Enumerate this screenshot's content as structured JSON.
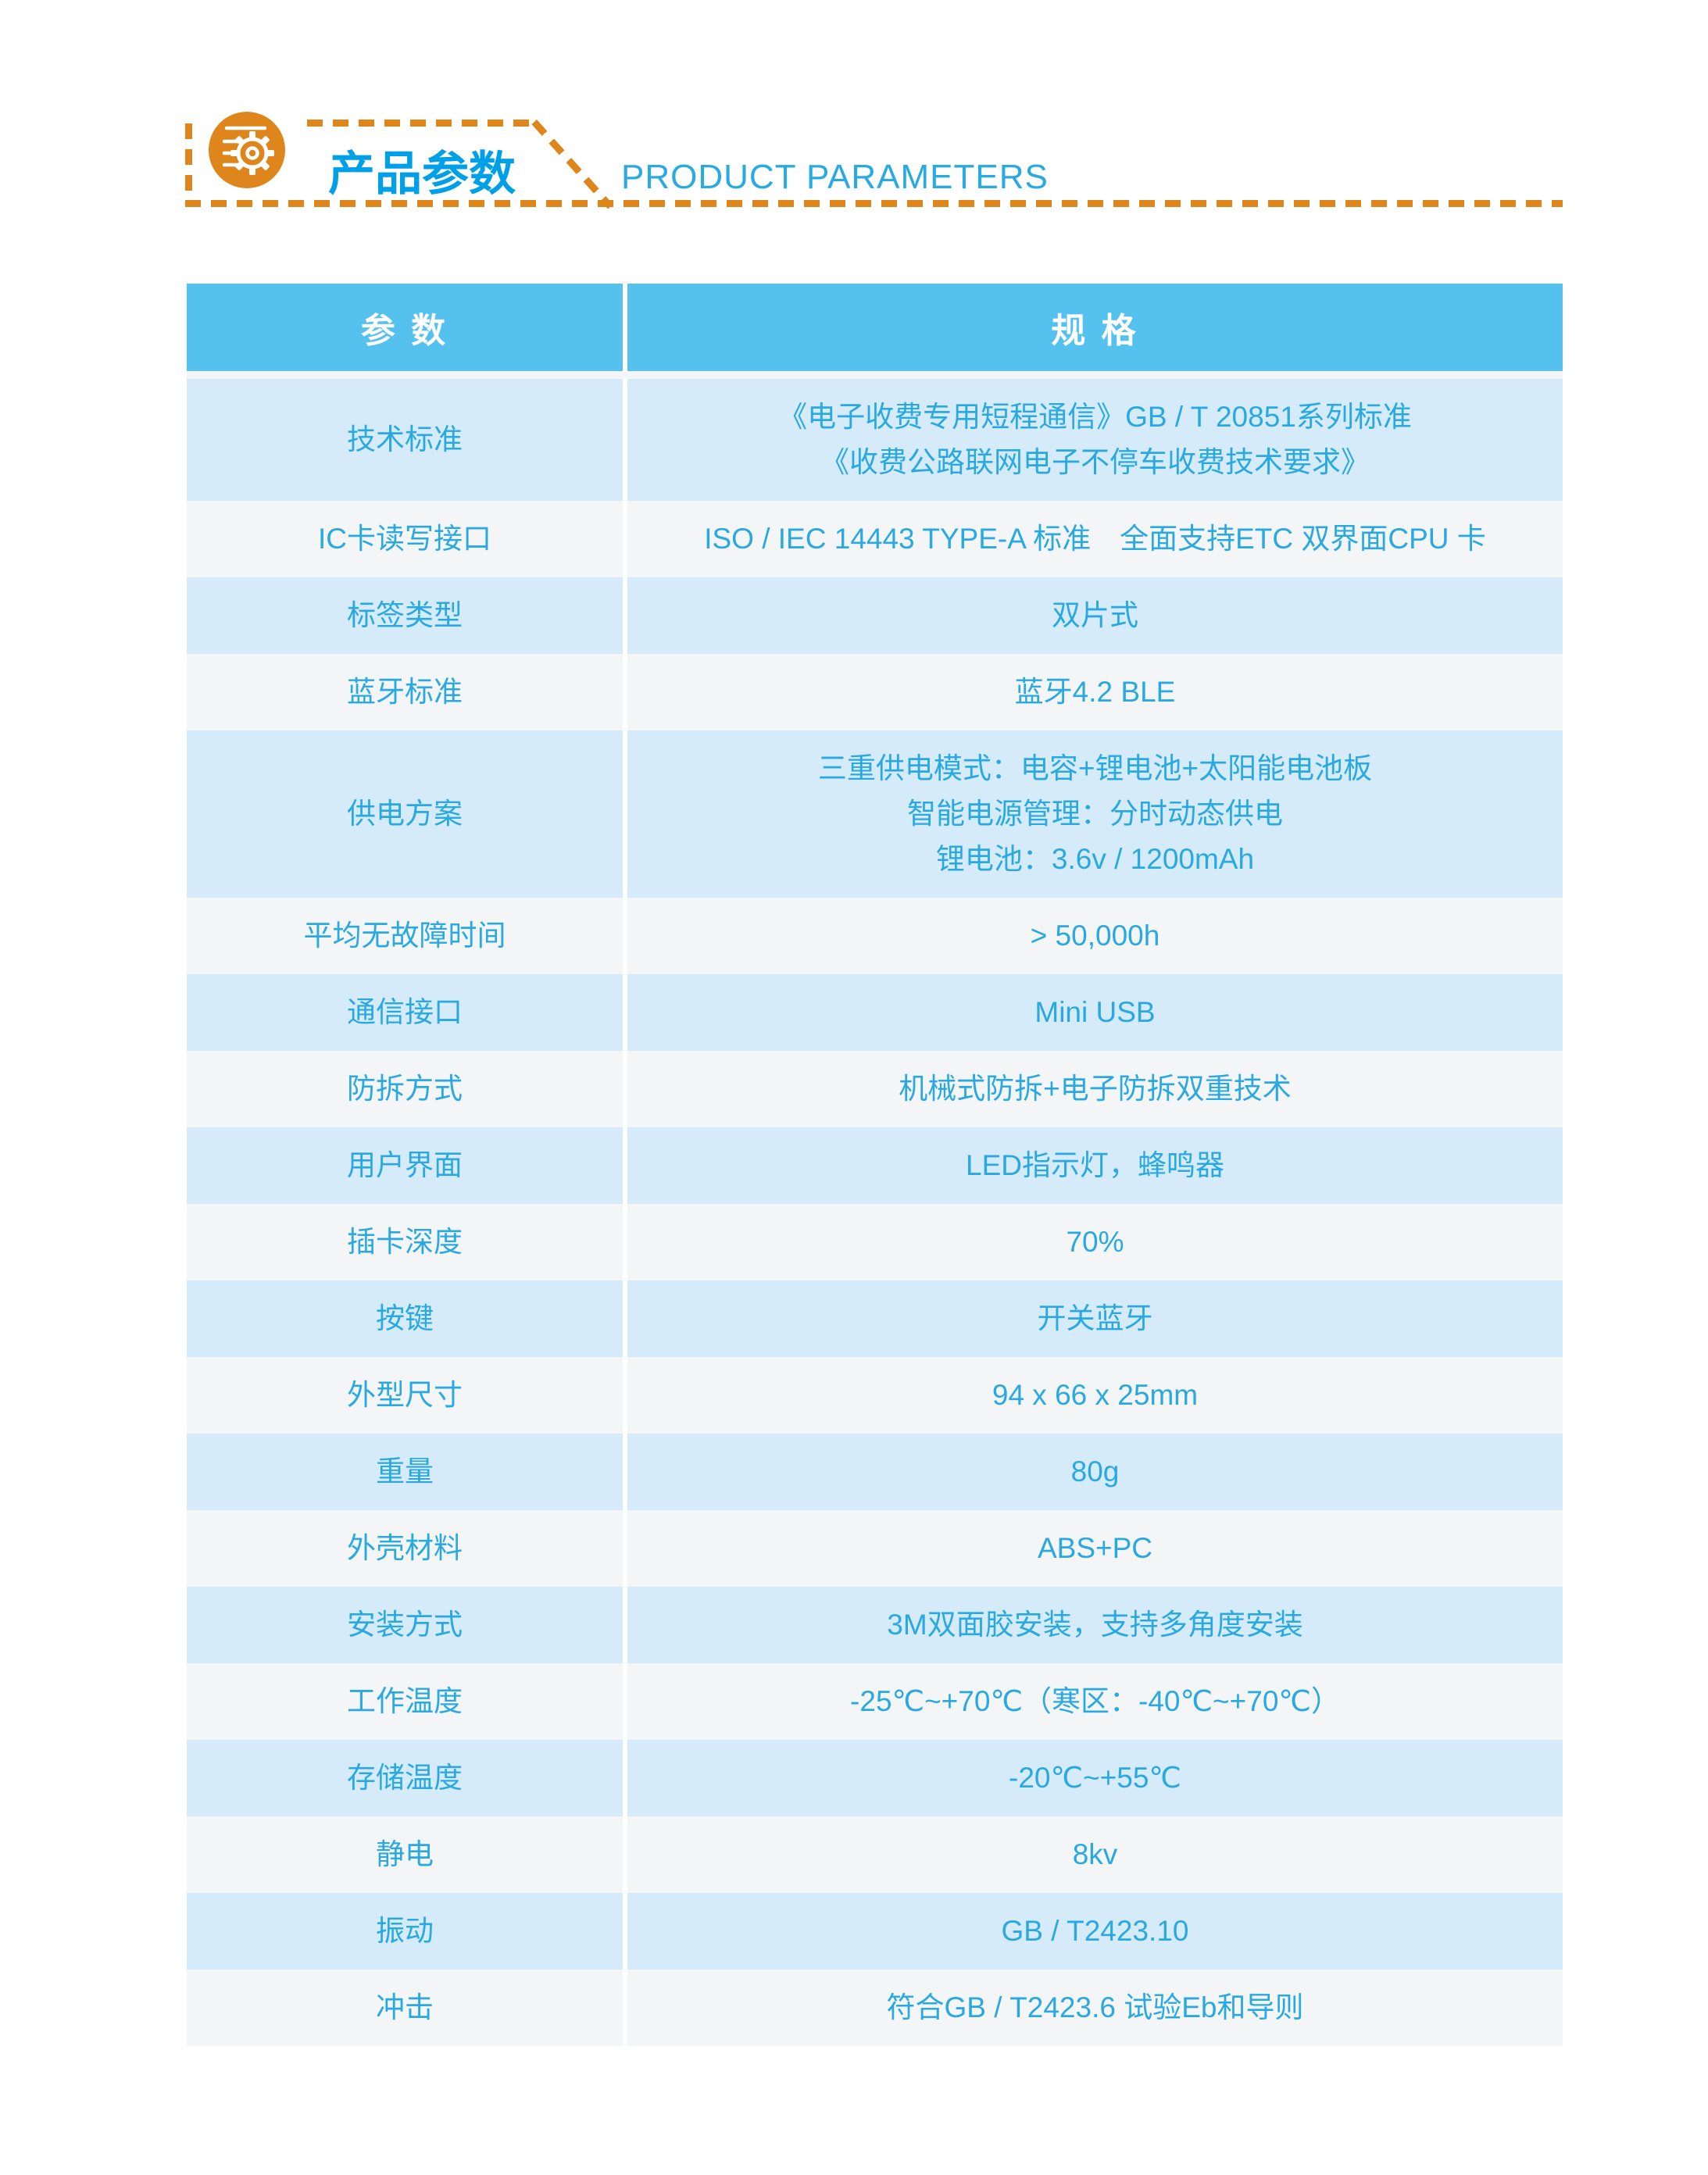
{
  "header": {
    "title": "产品参数",
    "subtitle": "PRODUCT PARAMETERS",
    "icon": "gear-list-icon"
  },
  "colors": {
    "accent_orange": "#DE861C",
    "title_blue": "#00A0E9",
    "subtitle_blue": "#29ABE2",
    "table_header_bg": "#54C1EF",
    "table_header_text": "#FFFFFF",
    "row_blue_bg": "#D5EBF9",
    "row_light_bg": "#F4F5F7",
    "cell_text": "#29A9E0"
  },
  "table": {
    "columns": [
      "参 数",
      "规 格"
    ],
    "rows": [
      {
        "param": "技术标准",
        "spec": [
          "《电子收费专用短程通信》GB / T 20851系列标准",
          "《收费公路联网电子不停车收费技术要求》"
        ]
      },
      {
        "param": "IC卡读写接口",
        "spec": [
          "ISO / IEC 14443 TYPE-A 标准　全面支持ETC 双界面CPU 卡"
        ]
      },
      {
        "param": "标签类型",
        "spec": [
          "双片式"
        ]
      },
      {
        "param": "蓝牙标准",
        "spec": [
          "蓝牙4.2 BLE"
        ]
      },
      {
        "param": "供电方案",
        "spec": [
          "三重供电模式：电容+锂电池+太阳能电池板",
          "智能电源管理：分时动态供电",
          "锂电池：3.6v / 1200mAh"
        ]
      },
      {
        "param": "平均无故障时间",
        "spec": [
          "> 50,000h"
        ]
      },
      {
        "param": "通信接口",
        "spec": [
          "Mini USB"
        ]
      },
      {
        "param": "防拆方式",
        "spec": [
          "机械式防拆+电子防拆双重技术"
        ]
      },
      {
        "param": "用户界面",
        "spec": [
          "LED指示灯，蜂鸣器"
        ]
      },
      {
        "param": "插卡深度",
        "spec": [
          "70%"
        ]
      },
      {
        "param": "按键",
        "spec": [
          "开关蓝牙"
        ]
      },
      {
        "param": "外型尺寸",
        "spec": [
          "94 x 66 x 25mm"
        ]
      },
      {
        "param": "重量",
        "spec": [
          "80g"
        ]
      },
      {
        "param": "外壳材料",
        "spec": [
          "ABS+PC"
        ]
      },
      {
        "param": "安装方式",
        "spec": [
          "3M双面胶安装，支持多角度安装"
        ]
      },
      {
        "param": "工作温度",
        "spec": [
          "-25℃~+70℃（寒区：-40℃~+70℃）"
        ]
      },
      {
        "param": "存储温度",
        "spec": [
          "-20℃~+55℃"
        ]
      },
      {
        "param": "静电",
        "spec": [
          "8kv"
        ]
      },
      {
        "param": "振动",
        "spec": [
          "GB / T2423.10"
        ]
      },
      {
        "param": "冲击",
        "spec": [
          "符合GB / T2423.6 试验Eb和导则"
        ]
      }
    ]
  }
}
